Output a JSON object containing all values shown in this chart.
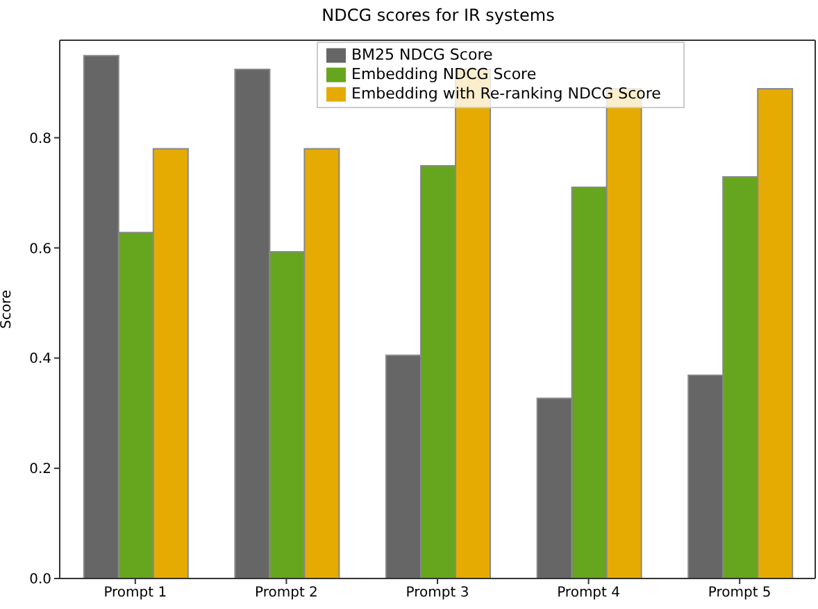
{
  "chart_data": {
    "type": "bar",
    "title": "NDCG scores for IR systems",
    "ylabel": "Score",
    "categories": [
      "Prompt 1",
      "Prompt 2",
      "Prompt 3",
      "Prompt 4",
      "Prompt 5"
    ],
    "series": [
      {
        "name": "BM25 NDCG Score",
        "color": "#666666",
        "values": [
          0.949,
          0.924,
          0.405,
          0.327,
          0.369
        ]
      },
      {
        "name": "Embedding NDCG Score",
        "color": "#66a61e",
        "values": [
          0.628,
          0.593,
          0.749,
          0.71,
          0.729
        ]
      },
      {
        "name": "Embedding with Re-ranking NDCG Score",
        "color": "#e6ab02",
        "values": [
          0.78,
          0.78,
          0.924,
          0.889,
          0.889
        ]
      }
    ],
    "ylim": [
      0,
      0.977
    ],
    "yticks": [
      {
        "value": 0,
        "label": "0.0"
      },
      0.2,
      0.4,
      0.6,
      0.8
    ],
    "legend": "top"
  }
}
